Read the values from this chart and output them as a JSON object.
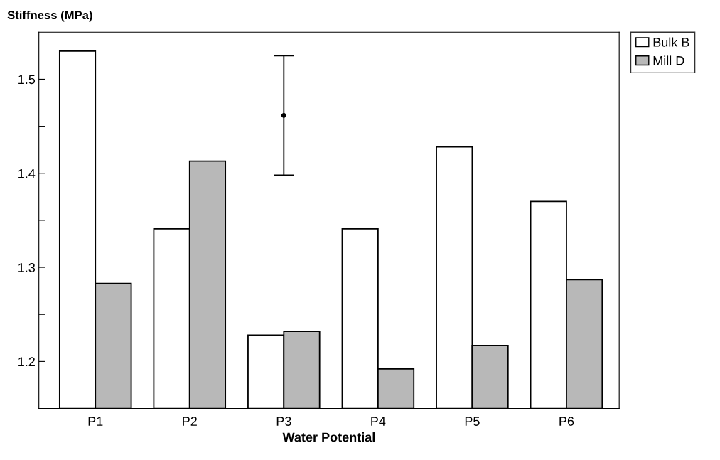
{
  "chart_data": {
    "type": "bar",
    "ylabel": "Stiffness (MPa)",
    "xlabel": "Water Potential",
    "categories": [
      "P1",
      "P2",
      "P3",
      "P4",
      "P5",
      "P6"
    ],
    "series": [
      {
        "name": "Bulk B",
        "color": "#ffffff",
        "values": [
          1.53,
          1.341,
          1.228,
          1.341,
          1.428,
          1.37
        ]
      },
      {
        "name": "Mill D",
        "color": "#b8b8b8",
        "values": [
          1.283,
          1.413,
          1.232,
          1.192,
          1.217,
          1.287
        ]
      },
      {
        "type": "scatter",
        "marker": "circle",
        "color": "#000000",
        "values": [
          null,
          null,
          1.4615,
          null,
          null,
          null
        ],
        "errors": [
          null,
          null,
          0.0635,
          null,
          null,
          null
        ]
      }
    ],
    "ylim": [
      1.15,
      1.55
    ],
    "yticks": [
      1.2,
      {
        "value": 1.25,
        "label": null
      },
      1.3,
      {
        "value": 1.35,
        "label": null
      },
      1.4,
      {
        "value": 1.45,
        "label": null
      },
      1.5
    ],
    "grid": false,
    "legend": "top right"
  }
}
